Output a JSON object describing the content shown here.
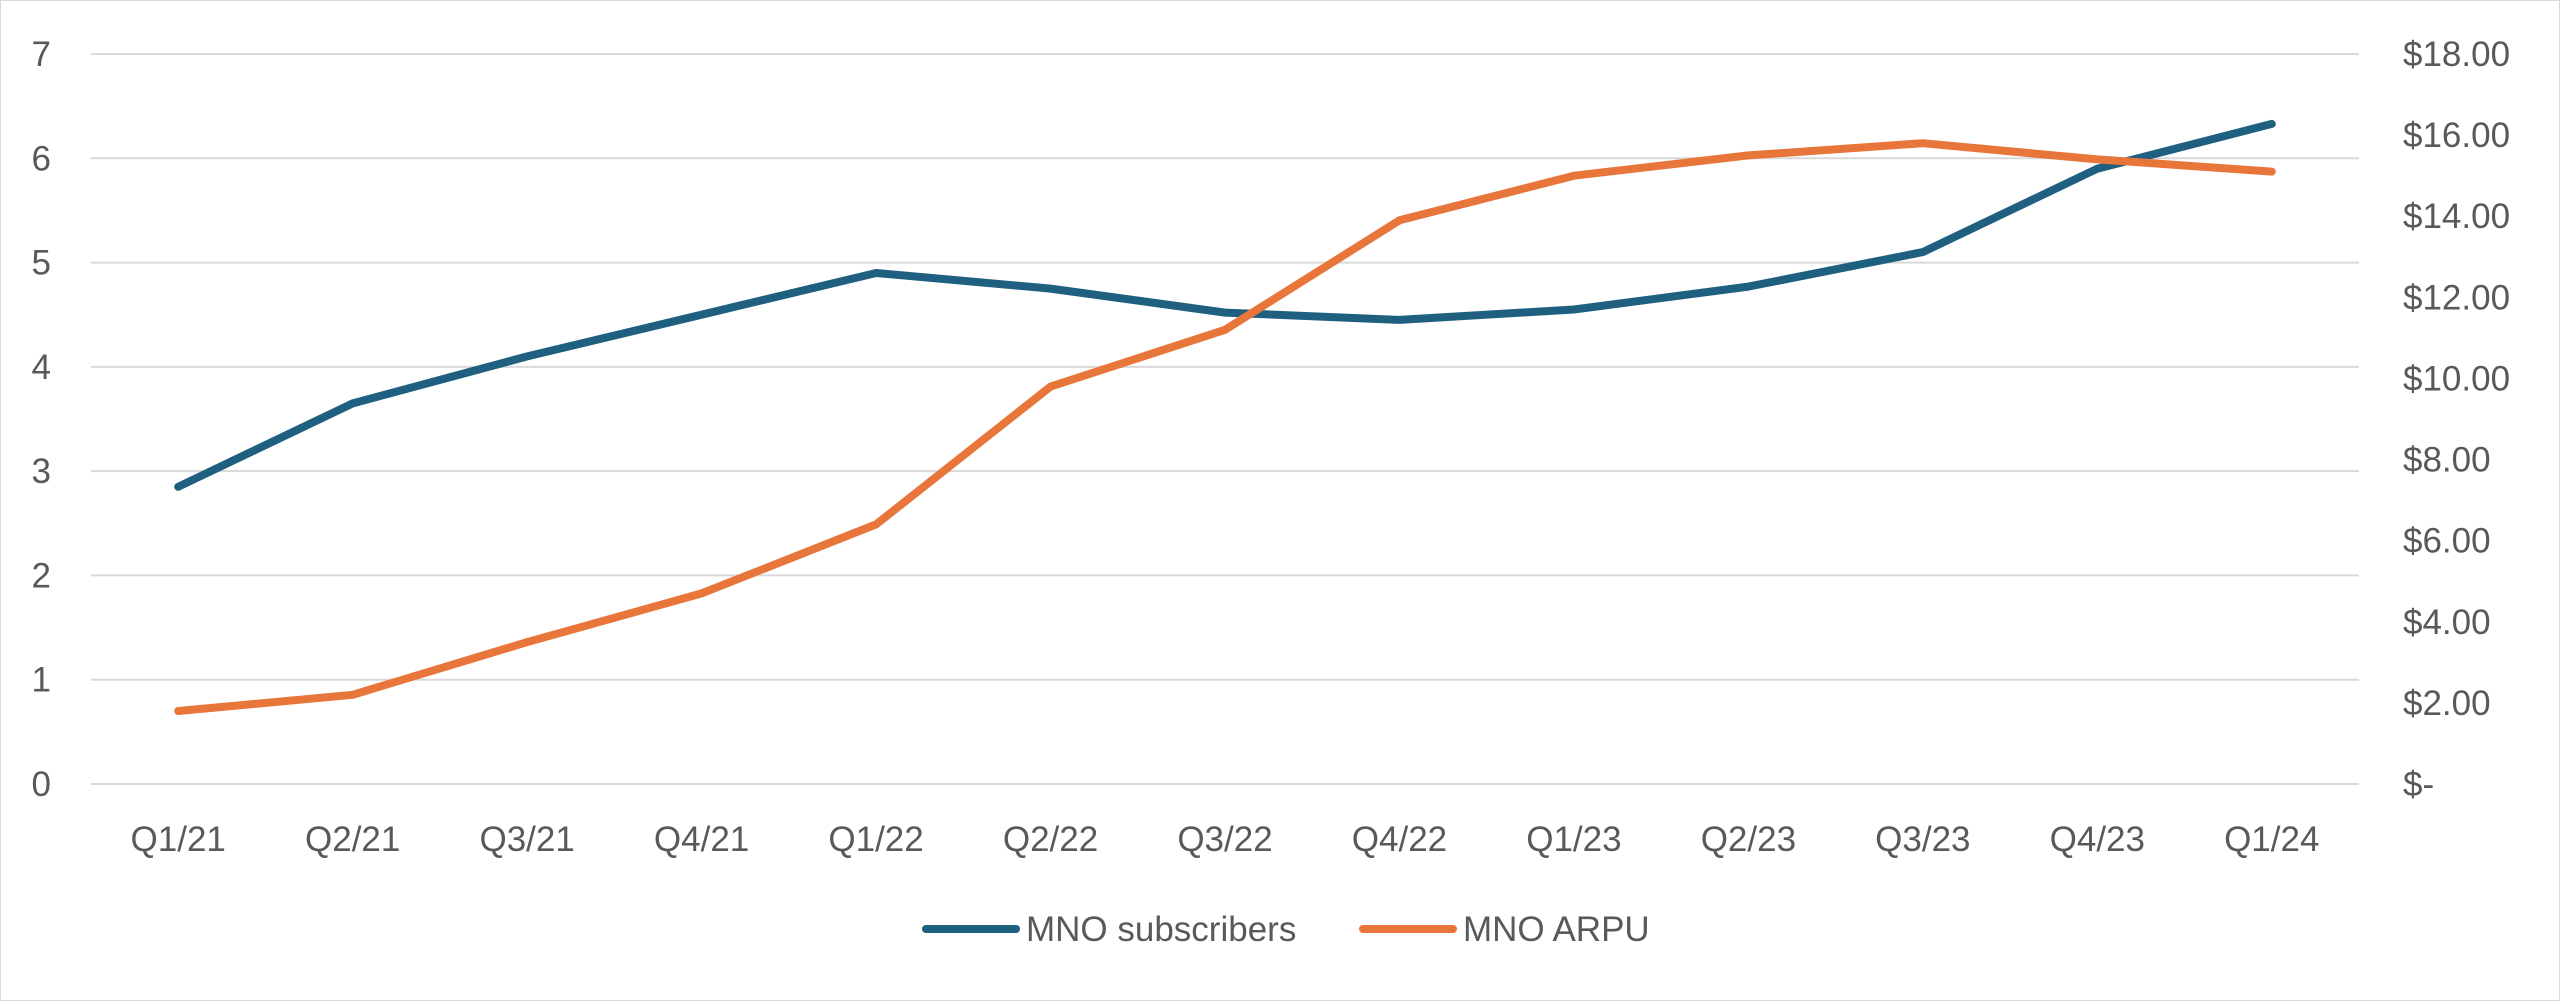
{
  "chart_data": {
    "type": "line",
    "title": "",
    "xlabel": "",
    "ylabel": "",
    "y2label": "",
    "categories": [
      "Q1/21",
      "Q2/21",
      "Q3/21",
      "Q4/21",
      "Q1/22",
      "Q2/22",
      "Q3/22",
      "Q4/22",
      "Q1/23",
      "Q2/23",
      "Q3/23",
      "Q4/23",
      "Q1/24"
    ],
    "ylim": [
      0,
      7
    ],
    "y_ticks": [
      "0",
      "1",
      "2",
      "3",
      "4",
      "5",
      "6",
      "7"
    ],
    "y2lim": [
      0,
      18
    ],
    "y2_ticks": [
      "$-",
      "$2.00",
      "$4.00",
      "$6.00",
      "$8.00",
      "$10.00",
      "$12.00",
      "$14.00",
      "$16.00",
      "$18.00"
    ],
    "grid": true,
    "legend_position": "bottom",
    "series": [
      {
        "name": "MNO subscribers",
        "axis": "left",
        "color": "#1f5f7f",
        "values": [
          2.85,
          3.65,
          4.1,
          4.5,
          4.9,
          4.75,
          4.52,
          4.45,
          4.55,
          4.77,
          5.1,
          5.9,
          6.33
        ]
      },
      {
        "name": "MNO ARPU",
        "axis": "right",
        "color": "#e8763a",
        "values": [
          1.8,
          2.2,
          3.5,
          4.7,
          6.4,
          9.8,
          11.2,
          13.9,
          15.0,
          15.5,
          15.8,
          15.4,
          15.1
        ]
      }
    ]
  }
}
